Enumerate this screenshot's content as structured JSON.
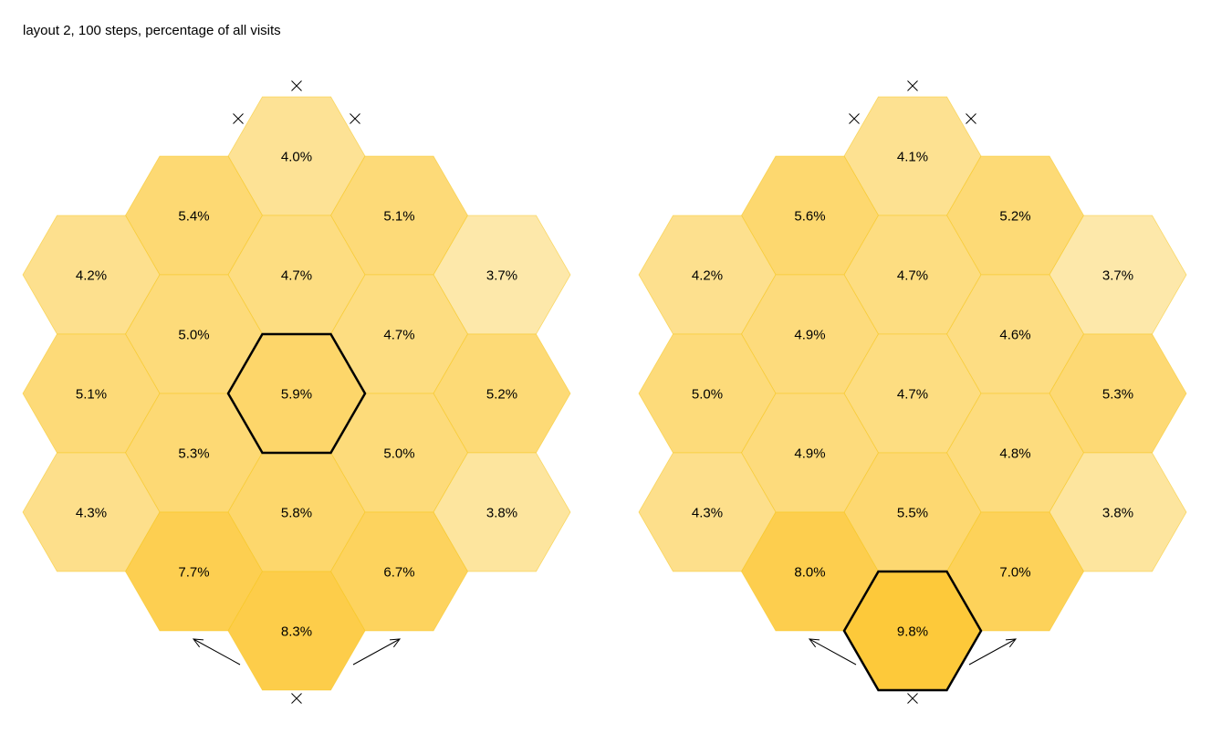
{
  "title": "layout 2, 100 steps, percentage of all visits",
  "colors": {
    "outline": "#f5c518",
    "highlight_outline": "#000000",
    "fill_min": "#fde8aa",
    "fill_max": "#fdc93a"
  },
  "boards": [
    {
      "cells": [
        {
          "col": 0,
          "row": 0,
          "label": "4.0%",
          "value": 4.0
        },
        {
          "col": -1,
          "row": 1,
          "label": "5.4%",
          "value": 5.4
        },
        {
          "col": 1,
          "row": 1,
          "label": "5.1%",
          "value": 5.1
        },
        {
          "col": -2,
          "row": 2,
          "label": "4.2%",
          "value": 4.2
        },
        {
          "col": 0,
          "row": 2,
          "label": "4.7%",
          "value": 4.7
        },
        {
          "col": 2,
          "row": 2,
          "label": "3.7%",
          "value": 3.7
        },
        {
          "col": -1,
          "row": 3,
          "label": "5.0%",
          "value": 5.0
        },
        {
          "col": 1,
          "row": 3,
          "label": "4.7%",
          "value": 4.7
        },
        {
          "col": -2,
          "row": 4,
          "label": "5.1%",
          "value": 5.1
        },
        {
          "col": 0,
          "row": 4,
          "label": "5.9%",
          "value": 5.9,
          "highlight": true
        },
        {
          "col": 2,
          "row": 4,
          "label": "5.2%",
          "value": 5.2
        },
        {
          "col": -1,
          "row": 5,
          "label": "5.3%",
          "value": 5.3
        },
        {
          "col": 1,
          "row": 5,
          "label": "5.0%",
          "value": 5.0
        },
        {
          "col": -2,
          "row": 6,
          "label": "4.3%",
          "value": 4.3
        },
        {
          "col": 0,
          "row": 6,
          "label": "5.8%",
          "value": 5.8
        },
        {
          "col": 2,
          "row": 6,
          "label": "3.8%",
          "value": 3.8
        },
        {
          "col": -1,
          "row": 7,
          "label": "7.7%",
          "value": 7.7
        },
        {
          "col": 1,
          "row": 7,
          "label": "6.7%",
          "value": 6.7
        },
        {
          "col": 0,
          "row": 8,
          "label": "8.3%",
          "value": 8.3
        }
      ]
    },
    {
      "cells": [
        {
          "col": 0,
          "row": 0,
          "label": "4.1%",
          "value": 4.1
        },
        {
          "col": -1,
          "row": 1,
          "label": "5.6%",
          "value": 5.6
        },
        {
          "col": 1,
          "row": 1,
          "label": "5.2%",
          "value": 5.2
        },
        {
          "col": -2,
          "row": 2,
          "label": "4.2%",
          "value": 4.2
        },
        {
          "col": 0,
          "row": 2,
          "label": "4.7%",
          "value": 4.7
        },
        {
          "col": 2,
          "row": 2,
          "label": "3.7%",
          "value": 3.7
        },
        {
          "col": -1,
          "row": 3,
          "label": "4.9%",
          "value": 4.9
        },
        {
          "col": 1,
          "row": 3,
          "label": "4.6%",
          "value": 4.6
        },
        {
          "col": -2,
          "row": 4,
          "label": "5.0%",
          "value": 5.0
        },
        {
          "col": 0,
          "row": 4,
          "label": "4.7%",
          "value": 4.7
        },
        {
          "col": 2,
          "row": 4,
          "label": "5.3%",
          "value": 5.3
        },
        {
          "col": -1,
          "row": 5,
          "label": "4.9%",
          "value": 4.9
        },
        {
          "col": 1,
          "row": 5,
          "label": "4.8%",
          "value": 4.8
        },
        {
          "col": -2,
          "row": 6,
          "label": "4.3%",
          "value": 4.3
        },
        {
          "col": 0,
          "row": 6,
          "label": "5.5%",
          "value": 5.5
        },
        {
          "col": 2,
          "row": 6,
          "label": "3.8%",
          "value": 3.8
        },
        {
          "col": -1,
          "row": 7,
          "label": "8.0%",
          "value": 8.0
        },
        {
          "col": 1,
          "row": 7,
          "label": "7.0%",
          "value": 7.0
        },
        {
          "col": 0,
          "row": 8,
          "label": "9.8%",
          "value": 9.8,
          "highlight": true
        }
      ]
    }
  ],
  "markers": {
    "x_markers": [
      "top",
      "top-left",
      "top-right",
      "bottom"
    ],
    "arrows": [
      "bottom-left",
      "bottom-right"
    ]
  }
}
